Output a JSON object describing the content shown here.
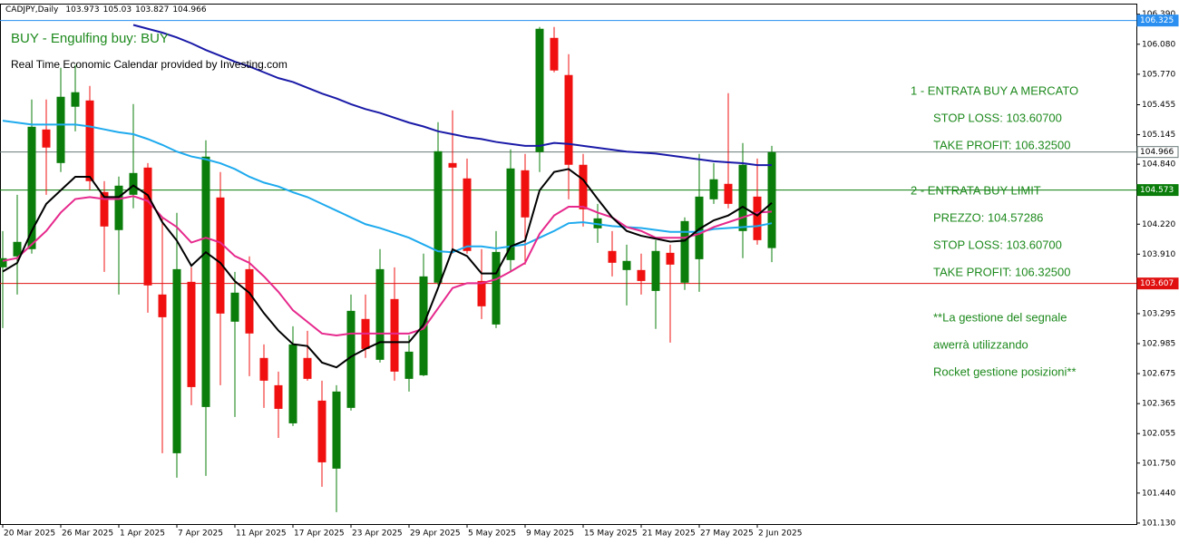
{
  "chart_data": {
    "type": "candlestick",
    "symbol": "CADJPY,Daily",
    "signal": "BUY - Engulfing buy: BUY",
    "calendar_note": "Real Time Economic Calendar provided by Investing.com",
    "panel": [
      "1 - ENTRATA BUY A MERCATO",
      "STOP LOSS: 103.60700",
      "TAKE PROFIT: 106.32500",
      "2 - ENTRATA BUY LIMIT",
      "PREZZO: 104.57286",
      "STOP LOSS: 103.60700",
      "TAKE PROFIT: 106.32500",
      "**La gestione del segnale",
      "awerrà utilizzando",
      "Rocket gestione posizioni**"
    ],
    "categories": [
      "20 Mar 2025",
      null,
      null,
      null,
      "26 Mar 2025",
      null,
      null,
      null,
      "1 Apr 2025",
      null,
      null,
      null,
      "7 Apr 2025",
      null,
      null,
      null,
      "11 Apr 2025",
      null,
      null,
      null,
      "17 Apr 2025",
      null,
      null,
      null,
      "23 Apr 2025",
      null,
      null,
      null,
      "29 Apr 2025",
      null,
      null,
      null,
      "5 May 2025",
      null,
      null,
      null,
      "9 May 2025",
      null,
      null,
      null,
      "15 May 2025",
      null,
      null,
      null,
      "21 May 2025",
      null,
      null,
      null,
      "27 May 2025",
      null,
      null,
      null,
      "2 Jun 2025",
      null
    ],
    "open": [
      103.774,
      103.887,
      103.962,
      105.199,
      104.852,
      105.434,
      105.499,
      104.552,
      104.159,
      104.524,
      104.805,
      103.493,
      101.852,
      103.624,
      102.33,
      104.496,
      103.212,
      103.755,
      102.837,
      102.555,
      102.161,
      102.837,
      102.396,
      101.693,
      102.321,
      103.24,
      102.818,
      103.446,
      102.621,
      102.658,
      103.615,
      104.852,
      104.693,
      103.633,
      103.183,
      103.849,
      104.777,
      104.965,
      106.146,
      105.762,
      104.834,
      104.177,
      103.943,
      103.746,
      103.746,
      103.53,
      103.924,
      103.615,
      103.858,
      104.477,
      104.637,
      104.149,
      104.505,
      103.973
    ],
    "high": [
      104.149,
      104.524,
      105.509,
      105.509,
      105.837,
      105.865,
      105.649,
      104.665,
      104.712,
      105.462,
      104.852,
      104.29,
      104.337,
      103.774,
      105.087,
      104.759,
      103.727,
      103.887,
      102.977,
      102.696,
      103.165,
      103.118,
      102.602,
      102.555,
      103.493,
      103.493,
      103.962,
      103.774,
      103.071,
      103.915,
      105.274,
      105.396,
      104.899,
      103.962,
      104.149,
      104.993,
      104.946,
      106.259,
      106.259,
      105.977,
      104.946,
      104.43,
      104.149,
      104.008,
      103.915,
      104.055,
      104.008,
      104.29,
      104.946,
      104.852,
      105.574,
      105.059,
      104.899,
      105.03
    ],
    "low": [
      103.146,
      103.493,
      103.915,
      104.524,
      104.759,
      105.18,
      104.571,
      103.727,
      103.493,
      104.384,
      103.305,
      101.852,
      101.599,
      102.349,
      101.618,
      102.555,
      102.227,
      102.649,
      102.321,
      102.011,
      102.133,
      102.602,
      101.505,
      101.243,
      102.293,
      102.837,
      102.79,
      102.602,
      102.49,
      102.649,
      103.587,
      103.915,
      103.915,
      103.24,
      103.146,
      103.727,
      103.802,
      104.759,
      105.79,
      104.477,
      104.196,
      104.027,
      103.68,
      103.38,
      103.493,
      103.137,
      102.996,
      103.54,
      103.521,
      104.43,
      104.384,
      103.868,
      104.008,
      103.827
    ],
    "close": [
      103.868,
      104.037,
      105.227,
      105.012,
      105.537,
      105.584,
      104.665,
      104.196,
      104.618,
      104.749,
      103.587,
      103.258,
      103.755,
      102.536,
      104.918,
      103.296,
      103.512,
      103.09,
      102.602,
      102.311,
      102.977,
      102.621,
      101.758,
      102.49,
      103.324,
      102.93,
      103.755,
      102.696,
      102.902,
      103.68,
      104.974,
      104.805,
      103.943,
      103.371,
      103.933,
      104.796,
      104.29,
      106.24,
      105.809,
      104.834,
      104.374,
      104.28,
      103.821,
      103.84,
      103.633,
      103.943,
      103.802,
      104.252,
      104.505,
      104.684,
      104.43,
      104.834,
      104.055,
      104.966
    ],
    "up_color": "#0a7d0a",
    "down_color": "#f01010",
    "moving_averages": [
      {
        "color": "#1a1aa8",
        "values": [
          null,
          null,
          null,
          null,
          null,
          null,
          null,
          null,
          null,
          106.28,
          106.24,
          106.2,
          106.15,
          106.09,
          106.02,
          105.96,
          105.9,
          105.85,
          105.79,
          105.73,
          105.69,
          105.63,
          105.57,
          105.52,
          105.46,
          105.41,
          105.37,
          105.32,
          105.27,
          105.23,
          105.18,
          105.15,
          105.12,
          105.1,
          105.07,
          105.05,
          105.03,
          105.03,
          105.06,
          105.05,
          105.03,
          105.01,
          104.99,
          104.97,
          104.96,
          104.95,
          104.93,
          104.91,
          104.89,
          104.87,
          104.86,
          104.85,
          104.83,
          104.83
        ]
      },
      {
        "color": "#1eaaee",
        "values": [
          105.29,
          105.27,
          105.25,
          105.25,
          105.25,
          105.25,
          105.23,
          105.2,
          105.17,
          105.15,
          105.1,
          105.04,
          104.97,
          104.92,
          104.89,
          104.85,
          104.79,
          104.71,
          104.65,
          104.61,
          104.55,
          104.5,
          104.43,
          104.36,
          104.29,
          104.22,
          104.18,
          104.13,
          104.08,
          104.01,
          103.94,
          103.93,
          103.99,
          103.99,
          103.97,
          103.99,
          104.01,
          104.08,
          104.15,
          104.23,
          104.24,
          104.22,
          104.2,
          104.19,
          104.18,
          104.16,
          104.14,
          104.14,
          104.14,
          104.17,
          104.18,
          104.19,
          104.2,
          104.23
        ]
      },
      {
        "color": "#e6288c",
        "values": [
          103.84,
          103.87,
          104.01,
          104.15,
          104.34,
          104.48,
          104.5,
          104.48,
          104.48,
          104.51,
          104.46,
          104.29,
          104.19,
          104.03,
          104.08,
          104.03,
          103.89,
          103.82,
          103.68,
          103.52,
          103.33,
          103.21,
          103.09,
          103.07,
          103.09,
          103.09,
          103.09,
          103.09,
          103.09,
          103.14,
          103.35,
          103.56,
          103.61,
          103.61,
          103.65,
          103.73,
          103.82,
          104.12,
          104.31,
          104.4,
          104.4,
          104.34,
          104.29,
          104.19,
          104.15,
          104.08,
          104.08,
          104.08,
          104.12,
          104.19,
          104.24,
          104.29,
          104.34,
          104.35
        ]
      },
      {
        "color": "#000000",
        "values": [
          103.73,
          103.82,
          104.15,
          104.43,
          104.57,
          104.71,
          104.71,
          104.5,
          104.5,
          104.62,
          104.52,
          104.24,
          104.05,
          103.79,
          103.93,
          103.82,
          103.63,
          103.51,
          103.3,
          103.12,
          102.98,
          102.96,
          102.79,
          102.74,
          102.85,
          102.93,
          103.0,
          103.0,
          103.0,
          103.18,
          103.56,
          103.96,
          103.89,
          103.71,
          103.71,
          103.99,
          104.05,
          104.57,
          104.76,
          104.79,
          104.68,
          104.48,
          104.29,
          104.15,
          104.1,
          104.07,
          104.04,
          104.05,
          104.17,
          104.26,
          104.31,
          104.4,
          104.31,
          104.44
        ]
      }
    ],
    "levels": [
      {
        "value": 106.325,
        "color": "#2a8ff0"
      },
      {
        "value": 104.573,
        "color": "#0a7d0a"
      },
      {
        "value": 103.607,
        "color": "#e01010"
      }
    ],
    "bid_color": "#6a7a7a",
    "ylim": [
      101.12,
      106.5
    ],
    "yticks": [
      {
        "value": 106.39,
        "label": "106.390"
      },
      {
        "value": 106.08,
        "label": "106.080"
      },
      {
        "value": 105.77,
        "label": "105.770"
      },
      105.455,
      105.145,
      {
        "value": 104.84,
        "label": "104.840"
      },
      {
        "value": 104.22,
        "label": "104.220"
      },
      {
        "value": 103.91,
        "label": "103.910"
      },
      103.295,
      102.985,
      102.675,
      102.365,
      102.055,
      {
        "value": 101.75,
        "label": "101.750"
      },
      {
        "value": 101.44,
        "label": "101.440"
      },
      {
        "value": 101.13,
        "label": "101.130"
      }
    ]
  }
}
